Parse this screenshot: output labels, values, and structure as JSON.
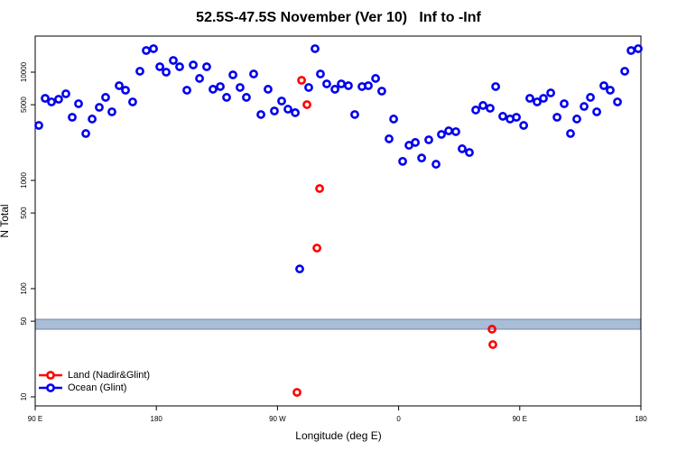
{
  "chart_data": {
    "type": "scatter",
    "title": "52.5S-47.5S November (Ver 10)   Inf to -Inf",
    "x_label": "Longitude (deg E)",
    "y_label": "N Total",
    "log_y": true,
    "legend": "bottom-left",
    "xlim": [
      90,
      540
    ],
    "xticks": [
      {
        "value": 90,
        "label": "90 E"
      },
      {
        "value": 180,
        "label": "180"
      },
      {
        "value": 270,
        "label": "90 W"
      },
      {
        "value": 360,
        "label": "0"
      },
      {
        "value": 450,
        "label": "90 E"
      },
      {
        "value": 540,
        "label": "180"
      }
    ],
    "ylim": [
      8.25,
      21544
    ],
    "yticks": [
      10,
      50,
      100,
      500,
      1000,
      5000,
      10000
    ],
    "series": [
      {
        "name": "Land (Nadir&Glint)",
        "color": "#ff0000",
        "x": [
          287.9,
          291.9,
          301.3,
          299.3,
          429.4,
          430.0,
          284.5
        ],
        "values": [
          8410,
          5010,
          841,
          237,
          42.2,
          30.4,
          11.0
        ]
      },
      {
        "name": "Ocean (Glint)",
        "color": "#0000ee",
        "x": [
          92.7,
          97.4,
          102.1,
          107.4,
          112.8,
          117.5,
          122.2,
          127.6,
          132.3,
          137.6,
          142.3,
          147.0,
          152.4,
          157.1,
          162.4,
          167.8,
          172.5,
          177.9,
          182.6,
          187.3,
          192.6,
          197.3,
          202.7,
          207.4,
          212.1,
          217.4,
          222.1,
          227.5,
          232.2,
          236.9,
          242.2,
          246.9,
          252.3,
          257.7,
          263.0,
          267.7,
          273.1,
          277.8,
          283.2,
          286.5,
          293.2,
          297.9,
          301.9,
          306.6,
          312.7,
          317.4,
          322.7,
          327.4,
          332.8,
          337.5,
          342.9,
          347.5,
          352.9,
          356.3,
          363.0,
          367.7,
          372.4,
          377.1,
          382.4,
          387.8,
          391.8,
          397.2,
          402.5,
          407.2,
          412.6,
          417.3,
          422.7,
          428.0,
          432.1,
          437.4,
          442.8,
          447.5,
          452.9,
          457.5,
          462.9,
          467.6,
          473.0,
          477.7,
          483.0,
          487.7,
          492.4,
          497.8,
          502.5,
          507.2,
          512.5,
          517.2,
          522.6,
          528.0,
          532.7,
          538.0
        ],
        "values": [
          3220,
          5730,
          5310,
          5620,
          6310,
          3830,
          5110,
          2710,
          3690,
          4730,
          5850,
          4300,
          7500,
          6810,
          5310,
          10200,
          15850,
          16480,
          11220,
          10000,
          12830,
          11220,
          6810,
          11660,
          8750,
          11220,
          6950,
          7360,
          5850,
          9440,
          7220,
          5850,
          9620,
          4060,
          6950,
          4380,
          5410,
          4550,
          4220,
          152,
          7220,
          16480,
          9620,
          7790,
          6950,
          7790,
          7500,
          4060,
          7360,
          7500,
          8750,
          6680,
          2420,
          3690,
          1500,
          2110,
          2240,
          1610,
          2370,
          1410,
          2660,
          2870,
          2820,
          1960,
          1810,
          4470,
          4920,
          4640,
          7360,
          3910,
          3690,
          3830,
          3220,
          5730,
          5310,
          5730,
          6430,
          3830,
          5110,
          2710,
          3690,
          4820,
          5850,
          4300,
          7500,
          6810,
          5310,
          10200,
          15850,
          16480
        ]
      }
    ]
  }
}
